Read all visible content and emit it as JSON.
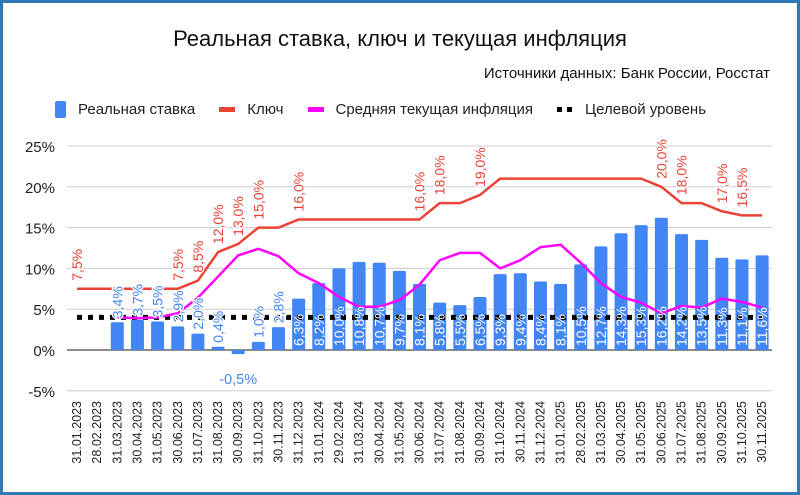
{
  "title": "Реальная ставка, ключ и текущая инфляция",
  "sources": "Источники данных: Банк России, Росстат",
  "colors": {
    "real_rate": "#4285f4",
    "key": "#ea4335",
    "inflation": "#ff00ff",
    "target": "#000000"
  },
  "chart_data": {
    "type": "bar+line",
    "title": "Реальная ставка, ключ и текущая инфляция",
    "legend_position": "top",
    "grid": true,
    "ylim": [
      -5,
      25
    ],
    "yticks": [
      "-5%",
      "0%",
      "5%",
      "10%",
      "15%",
      "20%",
      "25%"
    ],
    "ytick_values": [
      -5,
      0,
      5,
      10,
      15,
      20,
      25
    ],
    "categories": [
      "31.01.2023",
      "28.02.2023",
      "31.03.2023",
      "30.04.2023",
      "31.05.2023",
      "30.06.2023",
      "31.07.2023",
      "31.08.2023",
      "30.09.2023",
      "31.10.2023",
      "30.11.2023",
      "31.12.2023",
      "31.01.2024",
      "29.02.2024",
      "31.03.2024",
      "30.04.2024",
      "31.05.2024",
      "30.06.2024",
      "31.07.2024",
      "31.08.2024",
      "30.09.2024",
      "31.10.2024",
      "30.11.2024",
      "31.12.2024",
      "31.01.2025",
      "28.02.2025",
      "31.03.2025",
      "30.04.2025",
      "31.05.2025",
      "30.06.2025",
      "31.07.2025",
      "31.08.2025",
      "30.09.2025",
      "31.10.2025",
      "30.11.2025"
    ],
    "series": [
      {
        "name": "Реальная ставка",
        "type": "bar",
        "values": [
          null,
          null,
          3.4,
          3.7,
          3.5,
          2.9,
          2.0,
          0.4,
          -0.5,
          1.0,
          2.8,
          6.3,
          8.2,
          10.0,
          10.8,
          10.7,
          9.7,
          8.1,
          5.8,
          5.5,
          6.5,
          9.3,
          9.4,
          8.4,
          8.1,
          10.5,
          12.7,
          14.3,
          15.3,
          16.2,
          14.2,
          13.5,
          11.3,
          11.1,
          11.6
        ],
        "labels": [
          "",
          "",
          "3,4%",
          "3,7%",
          "3,5%",
          "2,9%",
          "2,0%",
          "0,4%",
          "-0,5%",
          "1,0%",
          "2,8%",
          "6,3%",
          "8,2%",
          "10,0%",
          "10,8%",
          "10,7%",
          "9,7%",
          "8,1%",
          "5,8%",
          "5,5%",
          "6,5%",
          "9,3%",
          "9,4%",
          "8,4%",
          "8,1%",
          "10,5%",
          "12,7%",
          "14,3%",
          "15,3%",
          "16,2%",
          "14,2%",
          "13,5%",
          "11,3%",
          "11,1%",
          "11,6%"
        ]
      },
      {
        "name": "Ключ",
        "type": "line",
        "values": [
          7.5,
          7.5,
          7.5,
          7.5,
          7.5,
          7.5,
          8.5,
          12.0,
          13.0,
          15.0,
          15.0,
          16.0,
          16.0,
          16.0,
          16.0,
          16.0,
          16.0,
          16.0,
          18.0,
          18.0,
          19.0,
          21.0,
          21.0,
          21.0,
          21.0,
          21.0,
          21.0,
          21.0,
          21.0,
          20.0,
          18.0,
          18.0,
          17.0,
          16.5,
          16.5
        ],
        "labels": [
          "7,5%",
          "",
          "",
          "",
          "",
          "7,5%",
          "8,5%",
          "12,0%",
          "13,0%",
          "15,0%",
          "",
          "16,0%",
          "",
          "",
          "",
          "",
          "",
          "16,0%",
          "18,0%",
          "",
          "19,0%",
          "",
          "",
          "",
          "",
          "",
          "",
          "",
          "",
          "20,0%",
          "18,0%",
          "",
          "17,0%",
          "16,5%",
          ""
        ]
      },
      {
        "name": "Средняя текущая инфляция",
        "type": "line",
        "values": [
          null,
          null,
          4.0,
          3.9,
          4.0,
          4.5,
          6.4,
          9.0,
          11.6,
          12.4,
          11.5,
          9.4,
          8.2,
          6.5,
          5.3,
          5.3,
          6.1,
          8.0,
          11.0,
          11.9,
          11.9,
          10.0,
          11.0,
          12.6,
          12.9,
          10.7,
          8.2,
          6.5,
          5.8,
          4.5,
          5.4,
          5.2,
          6.3,
          5.9,
          5.2
        ]
      },
      {
        "name": "Целевой уровень",
        "type": "line-dotted",
        "values": [
          4,
          4,
          4,
          4,
          4,
          4,
          4,
          4,
          4,
          4,
          4,
          4,
          4,
          4,
          4,
          4,
          4,
          4,
          4,
          4,
          4,
          4,
          4,
          4,
          4,
          4,
          4,
          4,
          4,
          4,
          4,
          4,
          4,
          4,
          4
        ]
      }
    ]
  }
}
